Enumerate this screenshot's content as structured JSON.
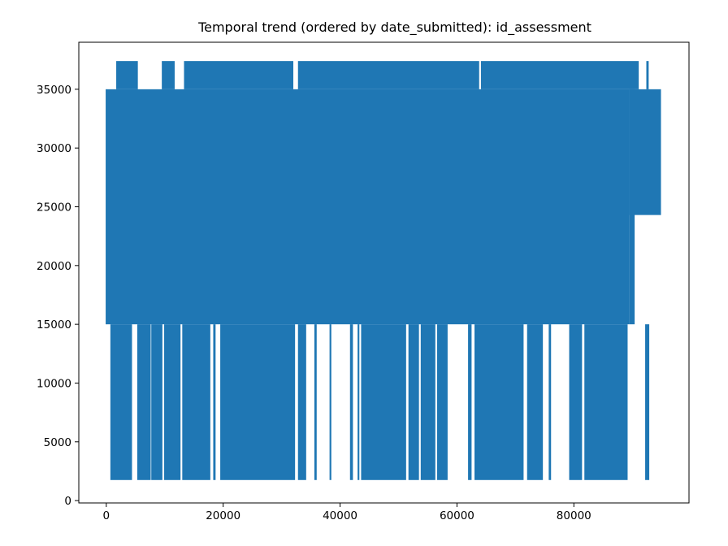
{
  "chart_data": {
    "type": "line",
    "title": "Temporal trend (ordered by date_submitted): id_assessment",
    "xlabel": "",
    "ylabel": "",
    "xlim": [
      -4700,
      99700
    ],
    "ylim": [
      -200,
      39000
    ],
    "x_ticks": [
      0,
      20000,
      40000,
      60000,
      80000
    ],
    "x_tick_labels": [
      "0",
      "20000",
      "40000",
      "60000",
      "80000"
    ],
    "y_ticks": [
      0,
      5000,
      10000,
      15000,
      20000,
      25000,
      30000,
      35000
    ],
    "y_tick_labels": [
      "0",
      "5000",
      "10000",
      "15000",
      "20000",
      "25000",
      "30000",
      "35000"
    ],
    "grid": false,
    "line_color": "#1f77b4",
    "series": [
      {
        "color": "#1f77b4",
        "x_range": [
          0,
          94800
        ],
        "band_min": 15000,
        "band_max": 35000,
        "low_value": 1750,
        "high_value": 37400,
        "tail_band_min": 24300,
        "tail_start": 89500,
        "low_spans": [
          [
            700,
            4400
          ],
          [
            5300,
            7600
          ],
          [
            7700,
            9600
          ],
          [
            9900,
            12700
          ],
          [
            13000,
            17800
          ],
          [
            18300,
            18700
          ],
          [
            19500,
            32300
          ],
          [
            32800,
            34200
          ],
          [
            35600,
            36000
          ],
          [
            38200,
            38500
          ],
          [
            41700,
            42200
          ],
          [
            43000,
            43300
          ],
          [
            43600,
            51300
          ],
          [
            51700,
            53500
          ],
          [
            53800,
            56300
          ],
          [
            56600,
            58400
          ],
          [
            61900,
            62500
          ],
          [
            63000,
            71400
          ],
          [
            72000,
            74700
          ],
          [
            75700,
            76100
          ],
          [
            79200,
            81400
          ],
          [
            81800,
            89200
          ],
          [
            92200,
            92900
          ]
        ],
        "high_spans": [
          [
            1700,
            5400
          ],
          [
            9500,
            11700
          ],
          [
            13300,
            32000
          ],
          [
            32800,
            63800
          ],
          [
            64100,
            91100
          ],
          [
            92400,
            92800
          ]
        ]
      }
    ]
  }
}
